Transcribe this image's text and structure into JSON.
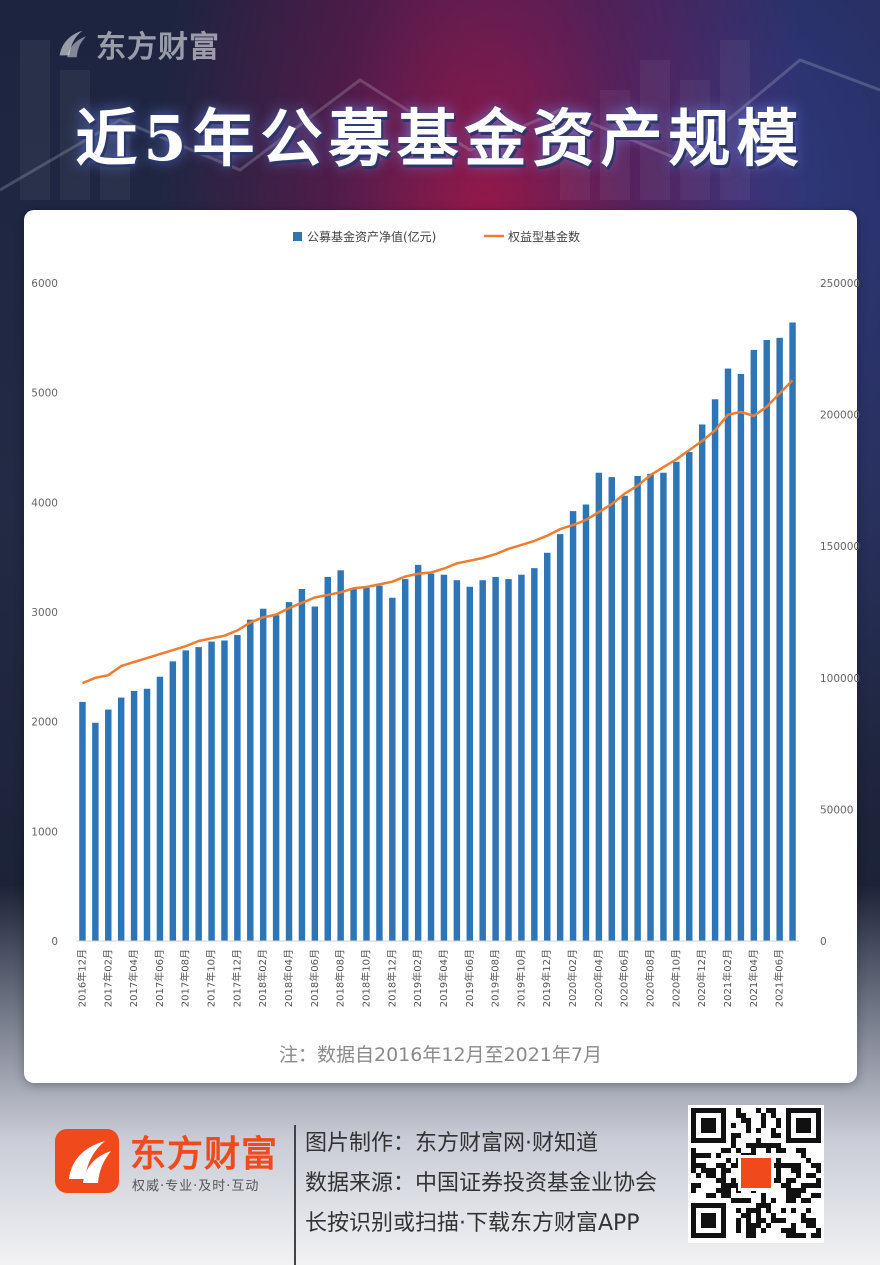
{
  "brand_top": "东方财富",
  "title": "近5年公募基金资产规模",
  "legend": {
    "bar_label": "公募基金资产净值(亿元)",
    "line_label": "权益型基金数"
  },
  "colors": {
    "bar": "#2e75b6",
    "line": "#ed7d31",
    "brand": "#f04a1c"
  },
  "chart_data": {
    "type": "bar",
    "series": [
      {
        "name": "公募基金资产净值(亿元)",
        "type": "bar",
        "axis": "left",
        "values": [
          2180,
          1990,
          2110,
          2220,
          2280,
          2300,
          2410,
          2550,
          2650,
          2680,
          2730,
          2740,
          2790,
          2930,
          3030,
          2970,
          3090,
          3210,
          3050,
          3320,
          3380,
          3210,
          3220,
          3240,
          3130,
          3300,
          3430,
          3350,
          3340,
          3290,
          3230,
          3290,
          3320,
          3300,
          3340,
          3400,
          3540,
          3710,
          3920,
          3980,
          4270,
          4230,
          4060,
          4240,
          4260,
          4270,
          4370,
          4460,
          4710,
          4940,
          5220,
          5170,
          5390,
          5480,
          5500,
          5640
        ]
      },
      {
        "name": "权益型基金数",
        "type": "line",
        "axis": "right",
        "values": [
          98000,
          100000,
          101000,
          104500,
          106000,
          107500,
          109000,
          110500,
          112000,
          114000,
          115000,
          116000,
          118000,
          121000,
          123000,
          124000,
          126500,
          128500,
          130500,
          131500,
          132500,
          134000,
          134500,
          135500,
          136500,
          138500,
          139500,
          140000,
          141500,
          143500,
          144500,
          145500,
          147000,
          149000,
          150500,
          152000,
          154000,
          156500,
          158000,
          160000,
          163000,
          166000,
          170000,
          173000,
          177000,
          180000,
          183000,
          186500,
          190000,
          194000,
          200000,
          201000,
          199500,
          203000,
          208000,
          213000
        ]
      }
    ],
    "x_tick_labels": [
      "2016年12月",
      "2017年02月",
      "2017年04月",
      "2017年06月",
      "2017年08月",
      "2017年10月",
      "2017年12月",
      "2018年02月",
      "2018年04月",
      "2018年06月",
      "2018年08月",
      "2018年10月",
      "2018年12月",
      "2019年02月",
      "2019年04月",
      "2019年06月",
      "2019年08月",
      "2019年10月",
      "2019年12月",
      "2020年02月",
      "2020年04月",
      "2020年06月",
      "2020年08月",
      "2020年10月",
      "2020年12月",
      "2021年02月",
      "2021年04月",
      "2021年06月"
    ],
    "y_left": {
      "min": 0,
      "max": 6000,
      "ticks": [
        0,
        1000,
        2000,
        3000,
        4000,
        5000,
        6000
      ]
    },
    "y_right": {
      "min": 0,
      "max": 250000,
      "ticks": [
        0,
        50000,
        100000,
        150000,
        200000,
        250000
      ]
    },
    "legend_position": "top-center",
    "grid": false
  },
  "note": "注：数据自2016年12月至2021年7月",
  "footer": {
    "brand": "东方财富",
    "slogan": "权威·专业·及时·互动",
    "line1": "图片制作：东方财富网·财知道",
    "line2": "数据来源：中国证券投资基金业协会",
    "line3": "长按识别或扫描·下载东方财富APP"
  }
}
